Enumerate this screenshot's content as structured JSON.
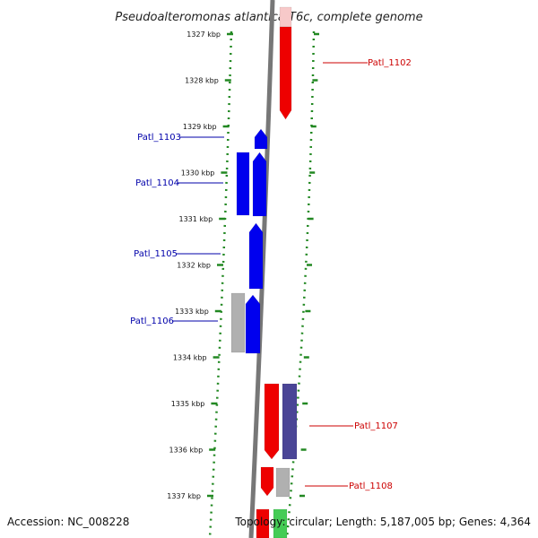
{
  "title": "Pseudoalteromonas atlantica T6c, complete genome",
  "colors": {
    "reverse_strand": "#0000ee",
    "reverse_label": "#0000aa",
    "forward_strand": "#ee0000",
    "forward_label": "#cc0000",
    "purple": "#4a4596",
    "gray_gene": "#b0b0b0",
    "pale_red": "#f7c9c9",
    "green": "#44cc55",
    "tick": "#228822",
    "axis": "#777777"
  },
  "ticks": [
    {
      "label": "1327 kbp",
      "kbp": 1327
    },
    {
      "label": "1328 kbp",
      "kbp": 1328
    },
    {
      "label": "1329 kbp",
      "kbp": 1329
    },
    {
      "label": "1330 kbp",
      "kbp": 1330
    },
    {
      "label": "1331 kbp",
      "kbp": 1331
    },
    {
      "label": "1332 kbp",
      "kbp": 1332
    },
    {
      "label": "1333 kbp",
      "kbp": 1333
    },
    {
      "label": "1334 kbp",
      "kbp": 1334
    },
    {
      "label": "1335 kbp",
      "kbp": 1335
    },
    {
      "label": "1336 kbp",
      "kbp": 1336
    },
    {
      "label": "1337 kbp",
      "kbp": 1337
    }
  ],
  "gene_labels": [
    {
      "label": "Patl_1102",
      "strand": "forward"
    },
    {
      "label": "Patl_1103",
      "strand": "reverse"
    },
    {
      "label": "Patl_1104",
      "strand": "reverse"
    },
    {
      "label": "Patl_1105",
      "strand": "reverse"
    },
    {
      "label": "Patl_1106",
      "strand": "reverse"
    },
    {
      "label": "Patl_1107",
      "strand": "forward"
    },
    {
      "label": "Patl_1108",
      "strand": "forward"
    }
  ],
  "footer": {
    "accession": "Accession: NC_008228",
    "summary": "Topology: circular; Length: 5,187,005 bp; Genes: 4,364"
  }
}
